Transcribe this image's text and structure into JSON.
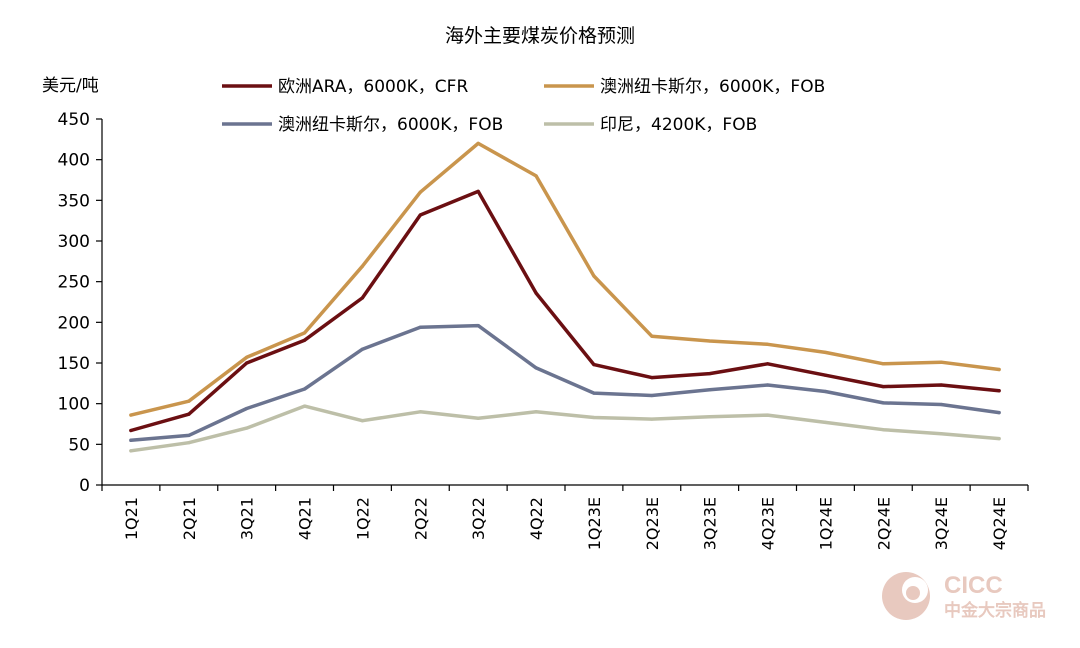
{
  "chart_data": {
    "type": "line",
    "title": "海外主要煤炭价格预测",
    "ylabel": "美元/吨",
    "xlabel": "",
    "ylim": [
      0,
      450
    ],
    "yticks": [
      0,
      50,
      100,
      150,
      200,
      250,
      300,
      350,
      400,
      450
    ],
    "grid": false,
    "legend_position": "top",
    "categories": [
      "1Q21",
      "2Q21",
      "3Q21",
      "4Q21",
      "1Q22",
      "2Q22",
      "3Q22",
      "4Q22",
      "1Q23E",
      "2Q23E",
      "3Q23E",
      "4Q23E",
      "1Q24E",
      "2Q24E",
      "3Q24E",
      "4Q24E"
    ],
    "series": [
      {
        "name": "欧洲ARA，6000K，CFR",
        "color": "#6b0f12",
        "values": [
          67,
          87,
          150,
          178,
          230,
          332,
          361,
          236,
          148,
          132,
          137,
          149,
          135,
          121,
          123,
          116
        ]
      },
      {
        "name": "澳洲纽卡斯尔，6000K，FOB",
        "color": "#c9954d",
        "values": [
          86,
          103,
          157,
          187,
          269,
          360,
          420,
          380,
          257,
          183,
          177,
          173,
          163,
          149,
          151,
          142
        ]
      },
      {
        "name": "澳洲纽卡斯尔，6000K，FOB",
        "color": "#6b7490",
        "values": [
          55,
          61,
          94,
          118,
          167,
          194,
          196,
          144,
          113,
          110,
          117,
          123,
          115,
          101,
          99,
          89
        ]
      },
      {
        "name": "印尼，4200K，FOB",
        "color": "#bdbfa8",
        "values": [
          42,
          52,
          70,
          97,
          79,
          90,
          82,
          90,
          83,
          81,
          84,
          86,
          77,
          68,
          63,
          57
        ]
      }
    ]
  },
  "watermark": {
    "brand": "CICC",
    "subtitle": "中金大宗商品",
    "color": "#e8c9bf"
  }
}
